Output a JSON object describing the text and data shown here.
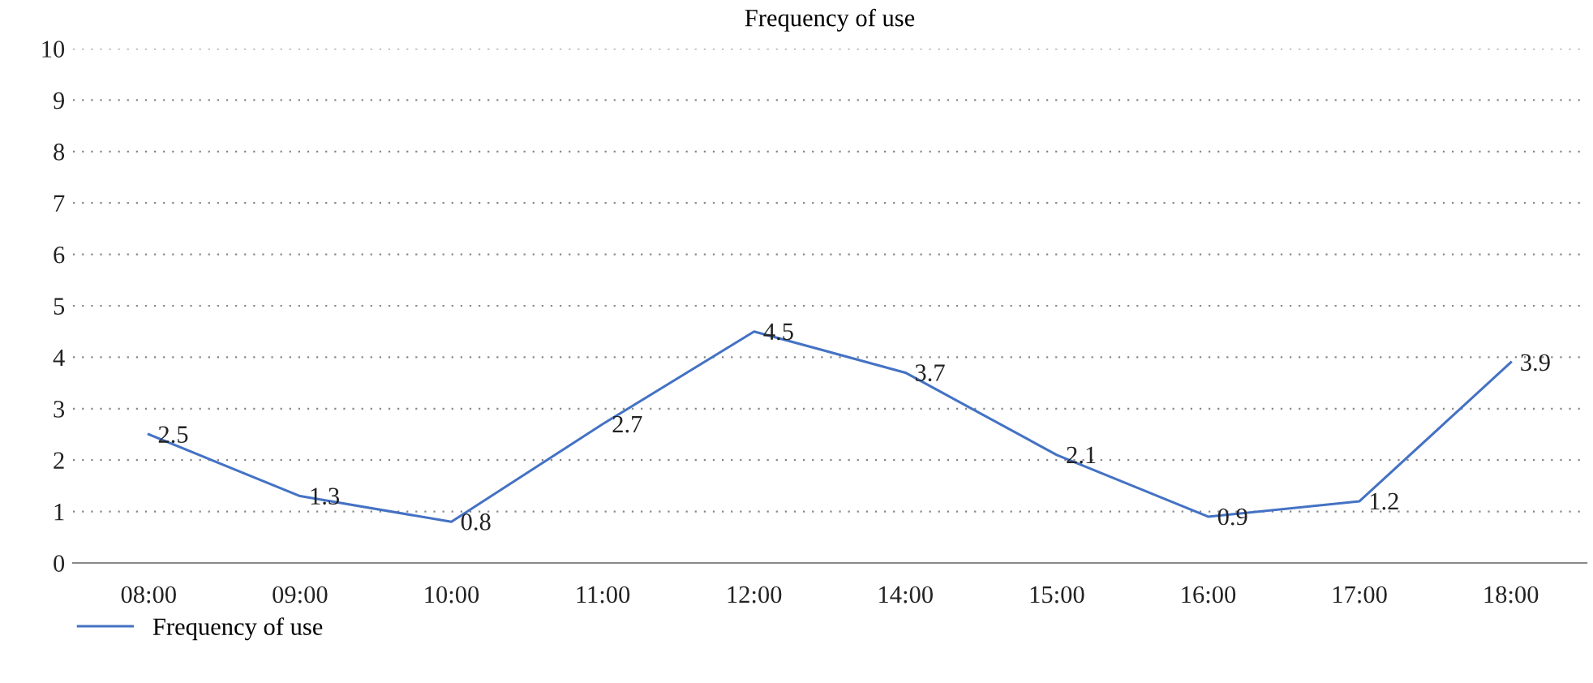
{
  "chart_data": {
    "type": "line",
    "title": "Frequency of use",
    "categories": [
      "08:00",
      "09:00",
      "10:00",
      "11:00",
      "12:00",
      "14:00",
      "15:00",
      "16:00",
      "17:00",
      "18:00"
    ],
    "series": [
      {
        "name": "Frequency of use",
        "color": "#4472c4",
        "values": [
          2.5,
          1.3,
          0.8,
          2.7,
          4.5,
          3.7,
          2.1,
          0.9,
          1.2,
          3.9
        ]
      }
    ],
    "ylim": [
      0,
      10
    ],
    "yticks": [
      0,
      1,
      2,
      3,
      4,
      5,
      6,
      7,
      8,
      9,
      10
    ],
    "grid": "y",
    "legend": "bottom",
    "data_labels": true,
    "marker": "none",
    "line_style": "solid"
  }
}
